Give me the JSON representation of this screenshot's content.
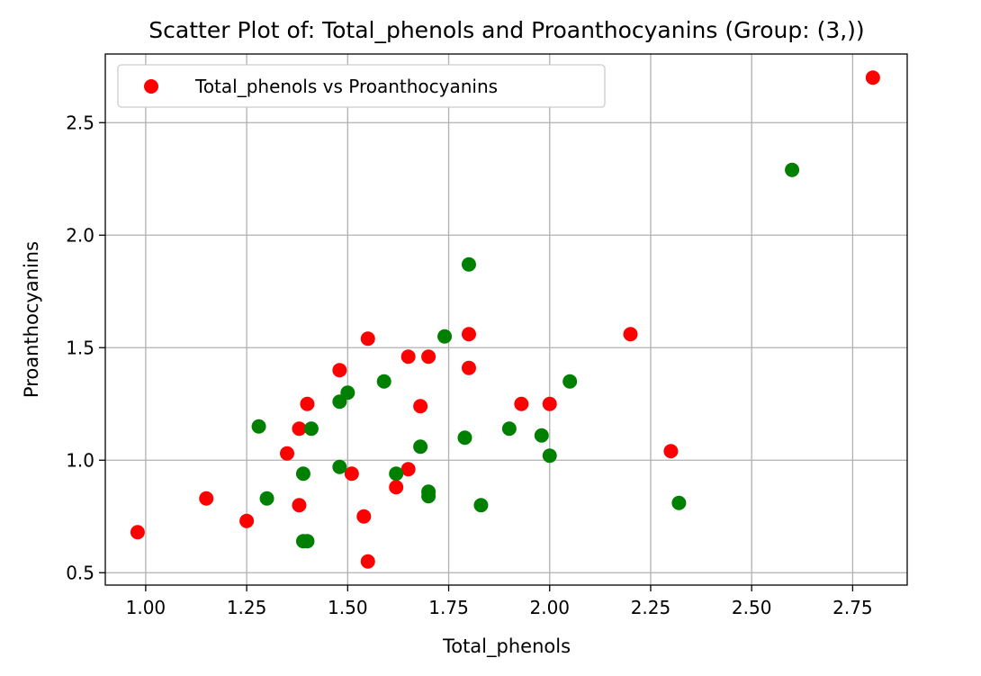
{
  "chart_data": {
    "type": "scatter",
    "title": "Scatter Plot of: Total_phenols and Proanthocyanins (Group: (3,))",
    "xlabel": "Total_phenols",
    "ylabel": "Proanthocyanins",
    "xlim": [
      0.9,
      2.885
    ],
    "ylim": [
      0.445,
      2.805
    ],
    "xticks": [
      1.0,
      1.25,
      1.5,
      1.75,
      2.0,
      2.25,
      2.5,
      2.75
    ],
    "xtick_labels": [
      "1.00",
      "1.25",
      "1.50",
      "1.75",
      "2.00",
      "2.25",
      "2.50",
      "2.75"
    ],
    "yticks": [
      0.5,
      1.0,
      1.5,
      2.0,
      2.5
    ],
    "ytick_labels": [
      "0.5",
      "1.0",
      "1.5",
      "2.0",
      "2.5"
    ],
    "grid": true,
    "legend": {
      "position": "top-left",
      "label": "Total_phenols vs Proanthocyanins",
      "color": "#ff0000"
    },
    "series": [
      {
        "color": "#ff0000",
        "points": [
          [
            0.98,
            0.68
          ],
          [
            1.15,
            0.83
          ],
          [
            1.25,
            0.73
          ],
          [
            1.35,
            1.03
          ],
          [
            1.38,
            1.14
          ],
          [
            1.38,
            0.8
          ],
          [
            1.4,
            1.25
          ],
          [
            1.48,
            1.4
          ],
          [
            1.51,
            0.94
          ],
          [
            1.54,
            0.75
          ],
          [
            1.55,
            1.54
          ],
          [
            1.55,
            0.55
          ],
          [
            1.62,
            0.88
          ],
          [
            1.65,
            1.46
          ],
          [
            1.65,
            0.96
          ],
          [
            1.68,
            1.24
          ],
          [
            1.7,
            1.46
          ],
          [
            1.8,
            1.56
          ],
          [
            1.8,
            1.41
          ],
          [
            1.93,
            1.25
          ],
          [
            2.0,
            1.25
          ],
          [
            2.2,
            1.56
          ],
          [
            2.3,
            1.04
          ],
          [
            2.8,
            2.7
          ]
        ]
      },
      {
        "color": "#008000",
        "points": [
          [
            1.28,
            1.15
          ],
          [
            1.3,
            0.83
          ],
          [
            1.39,
            0.94
          ],
          [
            1.39,
            0.64
          ],
          [
            1.4,
            0.64
          ],
          [
            1.41,
            1.14
          ],
          [
            1.48,
            1.26
          ],
          [
            1.48,
            0.97
          ],
          [
            1.5,
            1.3
          ],
          [
            1.59,
            1.35
          ],
          [
            1.62,
            0.94
          ],
          [
            1.68,
            1.06
          ],
          [
            1.7,
            0.86
          ],
          [
            1.7,
            0.84
          ],
          [
            1.74,
            1.55
          ],
          [
            1.79,
            1.1
          ],
          [
            1.8,
            1.87
          ],
          [
            1.83,
            0.8
          ],
          [
            1.9,
            1.14
          ],
          [
            1.98,
            1.11
          ],
          [
            2.0,
            1.02
          ],
          [
            2.05,
            1.35
          ],
          [
            2.32,
            0.81
          ],
          [
            2.6,
            2.29
          ]
        ]
      }
    ]
  }
}
